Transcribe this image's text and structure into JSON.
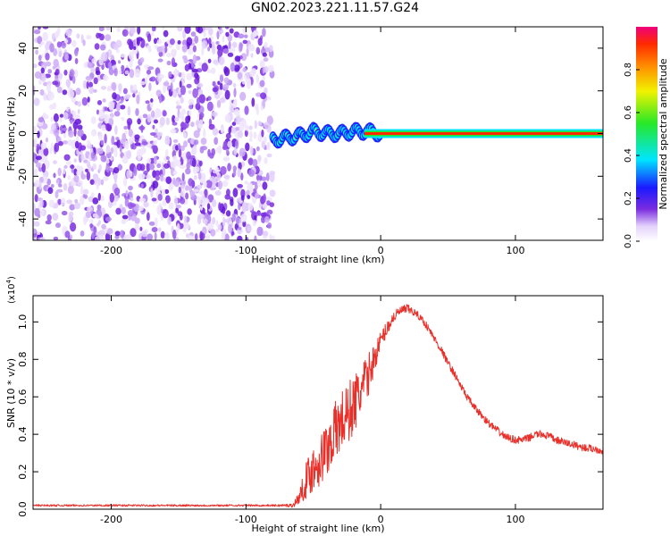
{
  "title": "GN02.2023.221.11.57.G24",
  "colors": {
    "signal": "#e8302a",
    "noise": "#7a2ce0",
    "axis": "#000000"
  },
  "chart_data": [
    {
      "type": "heatmap",
      "xlabel": "Height of straight line (km)",
      "ylabel": "Frequency (Hz)",
      "xlim": [
        -258,
        165
      ],
      "ylim": [
        -50,
        50
      ],
      "x_ticks": [
        -200,
        -100,
        0,
        100
      ],
      "x_tick_labels": [
        "-200",
        "-100",
        "0",
        "100"
      ],
      "y_ticks": [
        -40,
        -20,
        0,
        20,
        40
      ],
      "y_tick_labels": [
        "-40",
        "-20",
        "0",
        "20",
        "40"
      ],
      "colorbar": {
        "label": "Normalized spectral amplitude",
        "range": [
          0,
          1
        ],
        "ticks": [
          0.0,
          0.2,
          0.4,
          0.6,
          0.8
        ],
        "tick_labels": [
          "0.0",
          "0.2",
          "0.4",
          "0.6",
          "0.8"
        ]
      },
      "noise_region_x": [
        -258,
        -80
      ],
      "signal_track": {
        "x": [
          -80,
          -70,
          -60,
          -50,
          -40,
          -30,
          -20,
          -10,
          0,
          50,
          100,
          165
        ],
        "frequency": [
          -3,
          -2,
          -1,
          1,
          0,
          0,
          1,
          1,
          0,
          0,
          0,
          0
        ]
      },
      "grid": false
    },
    {
      "type": "line",
      "xlabel": "Height of straight line (km)",
      "ylabel": "SNR (10 * v/v)",
      "y_multiplier": "(x10",
      "y_multiplier_exp": "4",
      "y_multiplier_close": ")",
      "xlim": [
        -258,
        165
      ],
      "ylim": [
        0,
        1.14
      ],
      "x_ticks": [
        -200,
        -100,
        0,
        100
      ],
      "x_tick_labels": [
        "-200",
        "-100",
        "0",
        "100"
      ],
      "y_ticks": [
        0.0,
        0.2,
        0.4,
        0.6,
        0.8,
        1.0
      ],
      "y_tick_labels": [
        "0.0",
        "0.2",
        "0.4",
        "0.6",
        "0.8",
        "1.0"
      ],
      "series": [
        {
          "color": "#e8302a",
          "x": [
            -258,
            -240,
            -220,
            -200,
            -180,
            -160,
            -140,
            -120,
            -100,
            -80,
            -65,
            -60,
            -55,
            -50,
            -45,
            -40,
            -35,
            -30,
            -25,
            -20,
            -15,
            -10,
            -5,
            0,
            5,
            10,
            15,
            20,
            25,
            30,
            35,
            40,
            45,
            50,
            55,
            60,
            65,
            70,
            75,
            80,
            85,
            90,
            95,
            100,
            105,
            110,
            115,
            120,
            125,
            130,
            140,
            150,
            160,
            165
          ],
          "y": [
            0.02,
            0.02,
            0.02,
            0.02,
            0.02,
            0.02,
            0.02,
            0.02,
            0.02,
            0.02,
            0.02,
            0.07,
            0.16,
            0.22,
            0.26,
            0.32,
            0.4,
            0.46,
            0.5,
            0.56,
            0.62,
            0.7,
            0.8,
            0.9,
            0.97,
            1.03,
            1.06,
            1.07,
            1.05,
            1.02,
            0.97,
            0.91,
            0.85,
            0.78,
            0.72,
            0.65,
            0.59,
            0.54,
            0.5,
            0.46,
            0.43,
            0.4,
            0.38,
            0.37,
            0.37,
            0.38,
            0.4,
            0.4,
            0.39,
            0.37,
            0.35,
            0.33,
            0.32,
            0.31
          ],
          "noise_amplitude": [
            0.005,
            0.005,
            0.005,
            0.005,
            0.005,
            0.005,
            0.005,
            0.005,
            0.005,
            0.005,
            0.01,
            0.04,
            0.1,
            0.13,
            0.14,
            0.15,
            0.16,
            0.17,
            0.17,
            0.16,
            0.15,
            0.12,
            0.08,
            0.05,
            0.04,
            0.03,
            0.025,
            0.025,
            0.02,
            0.02,
            0.02,
            0.02,
            0.02,
            0.02,
            0.02,
            0.02,
            0.02,
            0.02,
            0.02,
            0.02,
            0.02,
            0.02,
            0.02,
            0.02,
            0.02,
            0.02,
            0.02,
            0.02,
            0.02,
            0.02,
            0.02,
            0.02,
            0.02,
            0.02
          ]
        }
      ],
      "grid": false
    }
  ]
}
